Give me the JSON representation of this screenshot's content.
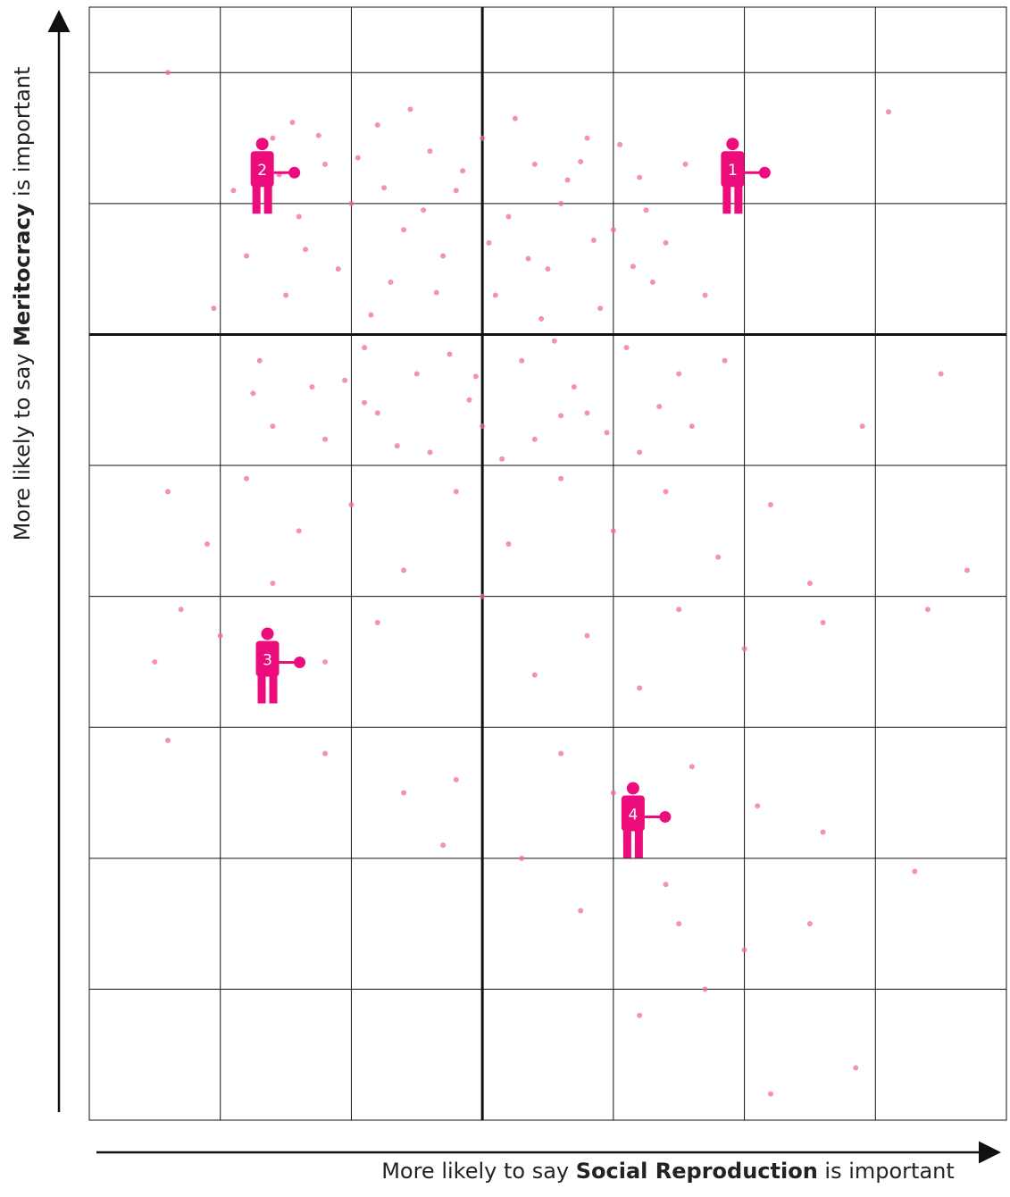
{
  "chart_data": {
    "type": "scatter",
    "xlabel": [
      "More likely to say ",
      "Social Reproduction",
      " is important"
    ],
    "ylabel": [
      "More likely to say ",
      "Meritocracy",
      " is important"
    ],
    "color": "#f06aa9",
    "marker_color": "#ec0c7c",
    "xlim": [
      -3,
      4
    ],
    "ylim": [
      -6,
      2.5
    ],
    "xticks": [
      -3,
      -2,
      -1,
      0,
      1,
      2,
      3,
      4
    ],
    "yticks": [
      -6,
      -5,
      -4,
      -3,
      -2,
      -1,
      0,
      1,
      2
    ],
    "grid": true,
    "x": [
      -1.6,
      -1.2,
      -0.8,
      -0.4,
      0.0,
      0.4,
      0.8,
      1.2,
      -1.4,
      -1.0,
      -0.6,
      -0.2,
      0.2,
      0.6,
      1.0,
      1.4,
      -1.8,
      -1.5,
      -1.1,
      -0.7,
      -0.3,
      0.1,
      0.5,
      0.9,
      1.3,
      1.7,
      -1.7,
      -1.3,
      -0.9,
      -0.5,
      -0.1,
      0.3,
      0.7,
      1.1,
      1.5,
      -1.6,
      -1.2,
      -0.8,
      -0.4,
      0.0,
      0.4,
      0.8,
      1.2,
      1.6,
      -1.9,
      -1.45,
      -0.95,
      -0.55,
      -0.15,
      0.25,
      0.65,
      1.05,
      1.55,
      -1.35,
      -0.85,
      -0.45,
      0.05,
      0.45,
      0.85,
      1.25,
      -1.75,
      -1.05,
      -0.65,
      -0.25,
      0.15,
      0.55,
      0.95,
      1.35,
      -2.05,
      1.85,
      -1.55,
      -0.35,
      0.35,
      -0.75,
      0.75,
      -1.25,
      1.15,
      -0.05,
      0.6,
      -0.9,
      -2.4,
      -2.1,
      -1.8,
      -1.4,
      -1.0,
      -0.6,
      -0.2,
      0.2,
      0.6,
      1.0,
      1.4,
      1.8,
      2.2,
      2.5,
      -2.3,
      -1.6,
      -0.8,
      0.0,
      0.8,
      1.5,
      2.0,
      2.6,
      -1.2,
      0.4,
      1.2,
      -2.5,
      3.4,
      3.7,
      3.5,
      2.9,
      -2.4,
      -1.2,
      -0.6,
      -0.2,
      0.6,
      1.0,
      1.6,
      2.1,
      -0.3,
      0.3,
      1.4,
      1.5,
      2.0,
      2.5,
      2.6,
      1.7,
      0.75,
      1.2,
      2.2,
      2.85,
      -2.4,
      3.1,
      -2.0,
      3.3
    ],
    "values": [
      1.5,
      1.3,
      1.6,
      1.4,
      1.5,
      1.3,
      1.5,
      1.2,
      0.9,
      1.0,
      0.8,
      1.1,
      0.9,
      1.0,
      0.8,
      0.7,
      0.6,
      0.3,
      0.5,
      0.4,
      0.6,
      0.3,
      0.5,
      0.2,
      0.4,
      0.3,
      -0.2,
      -0.4,
      -0.1,
      -0.3,
      -0.5,
      -0.2,
      -0.4,
      -0.1,
      -0.3,
      -0.7,
      -0.8,
      -0.6,
      -0.9,
      -0.7,
      -0.8,
      -0.6,
      -0.9,
      -0.7,
      1.1,
      1.62,
      1.35,
      1.72,
      1.25,
      1.65,
      1.18,
      1.45,
      1.3,
      0.65,
      0.15,
      0.95,
      0.7,
      0.12,
      0.72,
      0.95,
      -0.45,
      -0.35,
      -0.85,
      -0.15,
      -0.95,
      -0.05,
      -0.75,
      -0.55,
      0.2,
      -0.2,
      1.22,
      0.32,
      0.58,
      1.12,
      1.32,
      1.52,
      0.52,
      -0.32,
      -0.62,
      -0.52,
      -1.2,
      -1.6,
      -1.1,
      -1.5,
      -1.3,
      -1.8,
      -1.2,
      -1.6,
      -1.1,
      -1.5,
      -1.2,
      -1.7,
      -1.3,
      -1.9,
      -2.1,
      -1.9,
      -2.2,
      -2.0,
      -2.3,
      -2.1,
      -2.4,
      -2.2,
      -2.5,
      -2.6,
      -2.7,
      -2.5,
      -2.1,
      -1.8,
      -0.3,
      -0.7,
      -3.1,
      -3.2,
      -3.5,
      -3.4,
      -3.2,
      -3.5,
      -3.3,
      -3.6,
      -3.9,
      -4.0,
      -4.2,
      -4.5,
      -4.7,
      -4.5,
      -3.8,
      -5.0,
      -4.4,
      -5.2,
      -5.8,
      -5.6,
      2.0,
      1.7,
      -2.3,
      -4.1
    ],
    "markers": [
      {
        "label": "1",
        "x": 1.91,
        "y": 1.25
      },
      {
        "label": "2",
        "x": -1.68,
        "y": 1.25
      },
      {
        "label": "3",
        "x": -1.64,
        "y": -2.49
      },
      {
        "label": "4",
        "x": 1.15,
        "y": -3.67
      }
    ]
  }
}
